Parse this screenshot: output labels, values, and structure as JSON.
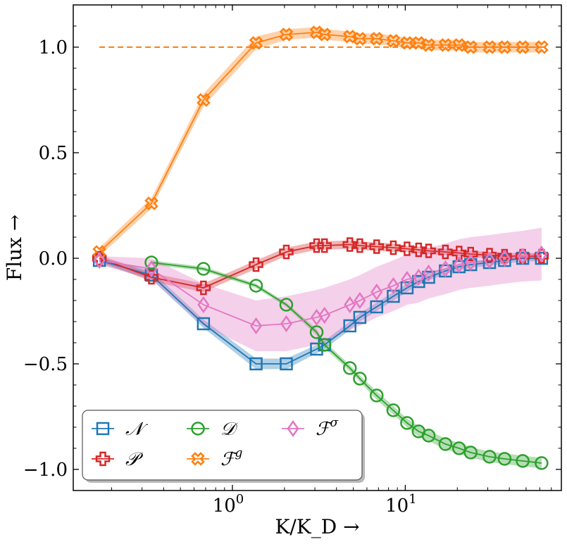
{
  "chart_data": {
    "type": "line",
    "title": "",
    "xlabel": "K/K_D →",
    "ylabel": "Flux →",
    "xscale": "log",
    "xlim": [
      0.12,
      80
    ],
    "ylim": [
      -1.1,
      1.2
    ],
    "xticks": [
      {
        "value": 1,
        "label": "10^0",
        "base": "10",
        "exp": "0"
      },
      {
        "value": 10,
        "label": "10^1",
        "base": "10",
        "exp": "1"
      }
    ],
    "yticks": [
      {
        "value": 1.0,
        "label": "1.0"
      },
      {
        "value": 0.5,
        "label": "0.5"
      },
      {
        "value": 0.0,
        "label": "0.0"
      },
      {
        "value": -0.5,
        "label": "−0.5"
      },
      {
        "value": -1.0,
        "label": "−1.0"
      }
    ],
    "reference_line": {
      "y": 1.0,
      "x": [
        0.17,
        65
      ],
      "color": "#ff7f0e",
      "style": "dashed"
    },
    "legend": {
      "position": "lower-left"
    },
    "series": [
      {
        "name": "N",
        "legend_label": "𝒩",
        "color": "#1f77b4",
        "marker": "square",
        "x": [
          0.17,
          0.34,
          0.68,
          1.37,
          2.05,
          3.07,
          3.41,
          4.78,
          5.46,
          6.83,
          8.53,
          10.24,
          11.95,
          13.65,
          17.07,
          20.48,
          23.9,
          30.72,
          37.55,
          47.79,
          61.44
        ],
        "y": [
          -0.01,
          -0.08,
          -0.31,
          -0.5,
          -0.5,
          -0.43,
          -0.41,
          -0.32,
          -0.28,
          -0.23,
          -0.18,
          -0.14,
          -0.11,
          -0.09,
          -0.06,
          -0.04,
          -0.03,
          -0.02,
          -0.01,
          0.0,
          0.0
        ],
        "band": [
          0.015,
          0.02,
          0.02,
          0.025,
          0.025,
          0.02,
          0.02,
          0.02,
          0.02,
          0.02,
          0.02,
          0.02,
          0.015,
          0.015,
          0.015,
          0.015,
          0.015,
          0.015,
          0.015,
          0.015,
          0.015
        ]
      },
      {
        "name": "P",
        "legend_label": "𝒫",
        "color": "#d62728",
        "marker": "plus",
        "x": [
          0.17,
          0.34,
          0.68,
          1.37,
          2.05,
          3.07,
          3.41,
          4.78,
          5.46,
          6.83,
          8.53,
          10.24,
          11.95,
          13.65,
          17.07,
          20.48,
          23.9,
          30.72,
          37.55,
          47.79,
          61.44
        ],
        "y": [
          0.0,
          -0.09,
          -0.14,
          -0.03,
          0.03,
          0.06,
          0.06,
          0.065,
          0.06,
          0.055,
          0.05,
          0.045,
          0.04,
          0.035,
          0.03,
          0.025,
          0.02,
          0.015,
          0.01,
          0.01,
          0.01
        ],
        "band": [
          0.015,
          0.02,
          0.02,
          0.02,
          0.02,
          0.02,
          0.02,
          0.02,
          0.02,
          0.02,
          0.02,
          0.015,
          0.015,
          0.015,
          0.015,
          0.015,
          0.015,
          0.015,
          0.015,
          0.015,
          0.015
        ]
      },
      {
        "name": "D",
        "legend_label": "𝒟",
        "color": "#2ca02c",
        "marker": "circle",
        "x": [
          0.34,
          0.68,
          1.37,
          2.05,
          3.07,
          3.41,
          4.78,
          5.46,
          6.83,
          8.53,
          10.24,
          11.95,
          13.65,
          17.07,
          20.48,
          23.9,
          30.72,
          37.55,
          47.79,
          61.44
        ],
        "y": [
          -0.02,
          -0.05,
          -0.13,
          -0.22,
          -0.35,
          -0.41,
          -0.52,
          -0.57,
          -0.65,
          -0.72,
          -0.78,
          -0.82,
          -0.84,
          -0.88,
          -0.9,
          -0.92,
          -0.94,
          -0.95,
          -0.96,
          -0.97
        ],
        "band": [
          0.01,
          0.01,
          0.01,
          0.01,
          0.015,
          0.015,
          0.015,
          0.015,
          0.02,
          0.02,
          0.02,
          0.025,
          0.025,
          0.025,
          0.025,
          0.025,
          0.025,
          0.025,
          0.025,
          0.025
        ]
      },
      {
        "name": "F^g",
        "legend_label": "ℱ",
        "legend_sup": "g",
        "color": "#ff7f0e",
        "marker": "x",
        "x": [
          0.17,
          0.34,
          0.68,
          1.37,
          2.05,
          3.07,
          3.41,
          4.78,
          5.46,
          6.83,
          8.53,
          10.24,
          11.95,
          13.65,
          17.07,
          20.48,
          23.9,
          30.72,
          37.55,
          47.79,
          61.44
        ],
        "y": [
          0.03,
          0.26,
          0.75,
          1.02,
          1.06,
          1.07,
          1.06,
          1.05,
          1.04,
          1.04,
          1.03,
          1.02,
          1.02,
          1.01,
          1.01,
          1.01,
          1.0,
          1.0,
          1.0,
          1.0,
          1.0
        ],
        "band": [
          0.02,
          0.025,
          0.03,
          0.03,
          0.025,
          0.025,
          0.025,
          0.025,
          0.025,
          0.025,
          0.025,
          0.025,
          0.025,
          0.025,
          0.025,
          0.025,
          0.025,
          0.025,
          0.025,
          0.025,
          0.025
        ]
      },
      {
        "name": "F^sigma",
        "legend_label": "ℱ",
        "legend_sup": "σ",
        "color": "#e377c2",
        "marker": "diamond",
        "x": [
          0.17,
          0.34,
          0.68,
          1.37,
          2.05,
          3.07,
          3.41,
          4.78,
          5.46,
          6.83,
          8.53,
          10.24,
          11.95,
          13.65,
          17.07,
          20.48,
          23.9,
          30.72,
          37.55,
          47.79,
          61.44
        ],
        "y": [
          -0.01,
          -0.05,
          -0.22,
          -0.32,
          -0.31,
          -0.28,
          -0.27,
          -0.22,
          -0.2,
          -0.16,
          -0.13,
          -0.1,
          -0.09,
          -0.07,
          -0.05,
          -0.03,
          -0.02,
          -0.01,
          0.0,
          0.01,
          0.02
        ],
        "band": [
          0.02,
          0.05,
          0.1,
          0.12,
          0.13,
          0.13,
          0.13,
          0.12,
          0.12,
          0.12,
          0.12,
          0.12,
          0.12,
          0.12,
          0.12,
          0.12,
          0.12,
          0.12,
          0.12,
          0.12,
          0.125
        ]
      }
    ]
  }
}
